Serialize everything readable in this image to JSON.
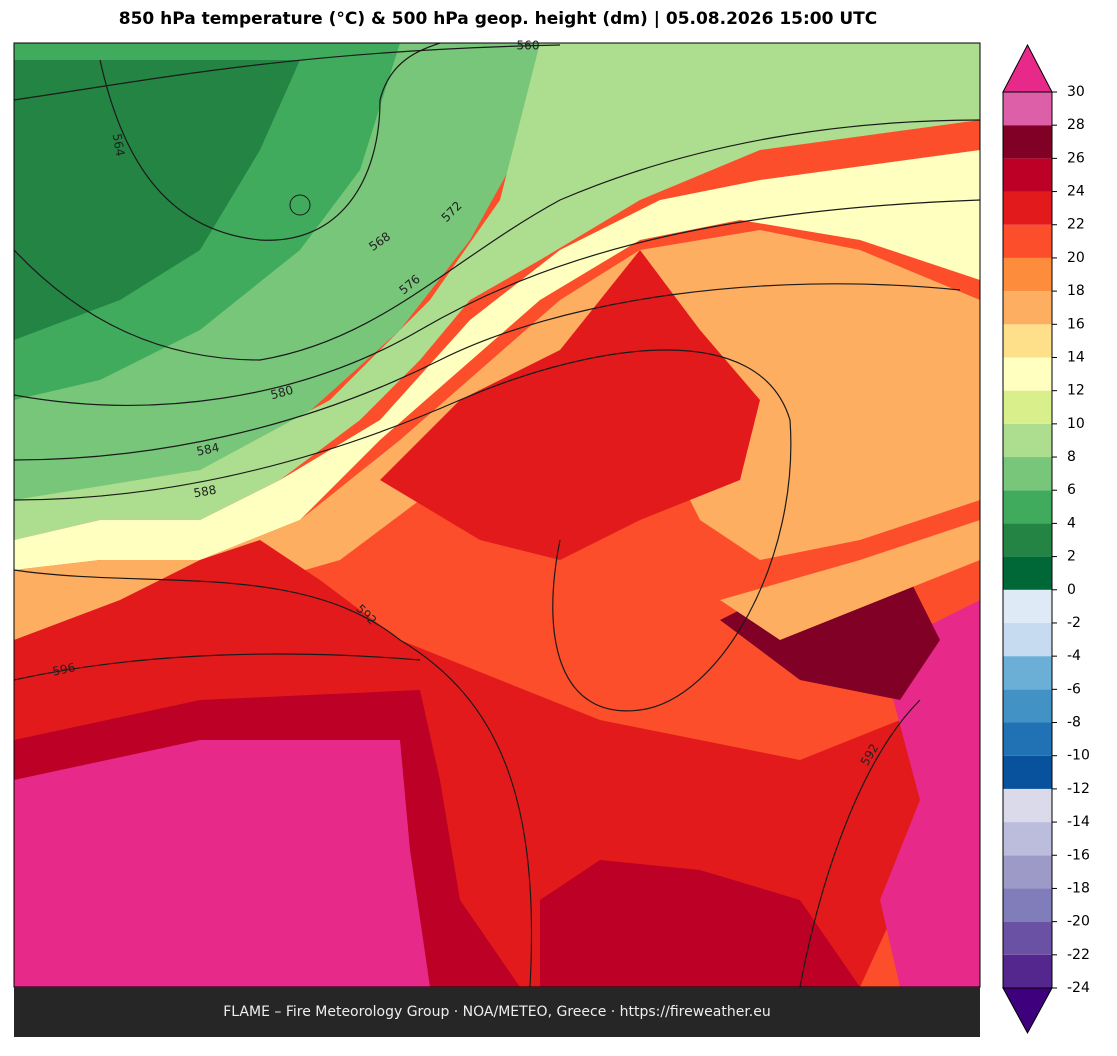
{
  "title": "850 hPa temperature (°C) & 500 hPa geop. height (dm)  |  05.08.2026 15:00 UTC",
  "footer": "FLAME – Fire Meteorology Group · NOA/METEO, Greece · https://fireweather.eu",
  "colorbar": {
    "ticks": [
      -24,
      -22,
      -20,
      -18,
      -16,
      -14,
      -12,
      -10,
      -8,
      -6,
      -4,
      -2,
      0,
      2,
      4,
      6,
      8,
      10,
      12,
      14,
      16,
      18,
      20,
      22,
      24,
      26,
      28,
      30
    ],
    "colors": [
      "#54278f",
      "#6a51a3",
      "#807dba",
      "#9e9ac8",
      "#bcbddc",
      "#dadaeb",
      "#08519c",
      "#2171b5",
      "#4292c6",
      "#6baed6",
      "#c6dbef",
      "#deebf7",
      "#006837",
      "#238443",
      "#41ab5d",
      "#78c679",
      "#addd8e",
      "#d9ef8b",
      "#ffffbf",
      "#fee08b",
      "#fdae61",
      "#fd8d3c",
      "#fc4e2a",
      "#e31a1c",
      "#bd0026",
      "#800026",
      "#dd5fa8"
    ],
    "over_color": "#e7298a",
    "under_color": "#3f007d"
  },
  "contour_labels": [
    560,
    564,
    568,
    572,
    576,
    580,
    584,
    588,
    592,
    596,
    592
  ]
}
